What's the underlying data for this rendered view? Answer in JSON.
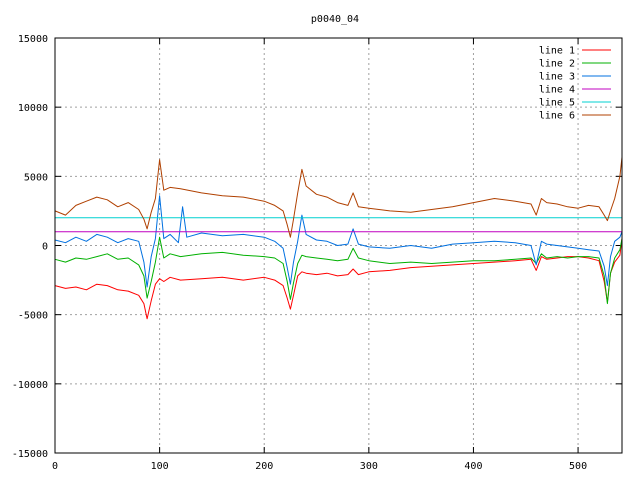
{
  "chart_data": {
    "type": "line",
    "title": "p0040_04",
    "xlabel": "",
    "ylabel": "",
    "xlim": [
      0,
      542
    ],
    "ylim": [
      -15000,
      15000
    ],
    "xticks": [
      0,
      100,
      200,
      300,
      400,
      500
    ],
    "yticks": [
      -15000,
      -10000,
      -5000,
      0,
      5000,
      10000,
      15000
    ],
    "grid": true,
    "legend_position": "top-right",
    "series": [
      {
        "name": "line 1",
        "color": "#ff0000",
        "points": [
          [
            0,
            -2900
          ],
          [
            10,
            -3100
          ],
          [
            20,
            -3000
          ],
          [
            30,
            -3200
          ],
          [
            40,
            -2800
          ],
          [
            50,
            -2900
          ],
          [
            60,
            -3200
          ],
          [
            70,
            -3300
          ],
          [
            80,
            -3600
          ],
          [
            85,
            -4200
          ],
          [
            88,
            -5300
          ],
          [
            92,
            -4000
          ],
          [
            96,
            -2800
          ],
          [
            100,
            -2400
          ],
          [
            104,
            -2600
          ],
          [
            110,
            -2300
          ],
          [
            120,
            -2500
          ],
          [
            140,
            -2400
          ],
          [
            160,
            -2300
          ],
          [
            180,
            -2500
          ],
          [
            200,
            -2300
          ],
          [
            210,
            -2500
          ],
          [
            218,
            -2900
          ],
          [
            222,
            -3800
          ],
          [
            225,
            -4600
          ],
          [
            228,
            -3600
          ],
          [
            232,
            -2200
          ],
          [
            236,
            -1900
          ],
          [
            240,
            -2000
          ],
          [
            250,
            -2100
          ],
          [
            260,
            -2000
          ],
          [
            270,
            -2200
          ],
          [
            280,
            -2100
          ],
          [
            285,
            -1700
          ],
          [
            290,
            -2100
          ],
          [
            300,
            -1900
          ],
          [
            320,
            -1800
          ],
          [
            340,
            -1600
          ],
          [
            360,
            -1500
          ],
          [
            380,
            -1400
          ],
          [
            400,
            -1300
          ],
          [
            420,
            -1200
          ],
          [
            440,
            -1100
          ],
          [
            455,
            -1000
          ],
          [
            460,
            -1800
          ],
          [
            465,
            -800
          ],
          [
            470,
            -1000
          ],
          [
            480,
            -900
          ],
          [
            490,
            -800
          ],
          [
            500,
            -800
          ],
          [
            510,
            -900
          ],
          [
            520,
            -1100
          ],
          [
            525,
            -2600
          ],
          [
            528,
            -4100
          ],
          [
            531,
            -2000
          ],
          [
            535,
            -1200
          ],
          [
            540,
            -700
          ],
          [
            542,
            500
          ]
        ]
      },
      {
        "name": "line 2",
        "color": "#00b000",
        "points": [
          [
            0,
            -1000
          ],
          [
            10,
            -1200
          ],
          [
            20,
            -900
          ],
          [
            30,
            -1000
          ],
          [
            40,
            -800
          ],
          [
            50,
            -600
          ],
          [
            60,
            -1000
          ],
          [
            70,
            -900
          ],
          [
            80,
            -1400
          ],
          [
            85,
            -2200
          ],
          [
            88,
            -3800
          ],
          [
            92,
            -2600
          ],
          [
            96,
            -1200
          ],
          [
            100,
            600
          ],
          [
            104,
            -900
          ],
          [
            110,
            -600
          ],
          [
            120,
            -800
          ],
          [
            140,
            -600
          ],
          [
            160,
            -500
          ],
          [
            180,
            -700
          ],
          [
            200,
            -800
          ],
          [
            210,
            -900
          ],
          [
            218,
            -1300
          ],
          [
            222,
            -2600
          ],
          [
            225,
            -3900
          ],
          [
            228,
            -2700
          ],
          [
            232,
            -1300
          ],
          [
            236,
            -700
          ],
          [
            240,
            -800
          ],
          [
            250,
            -900
          ],
          [
            260,
            -1000
          ],
          [
            270,
            -1100
          ],
          [
            280,
            -1000
          ],
          [
            285,
            -200
          ],
          [
            290,
            -900
          ],
          [
            300,
            -1100
          ],
          [
            320,
            -1300
          ],
          [
            340,
            -1200
          ],
          [
            360,
            -1300
          ],
          [
            380,
            -1200
          ],
          [
            400,
            -1100
          ],
          [
            420,
            -1100
          ],
          [
            440,
            -1000
          ],
          [
            455,
            -900
          ],
          [
            460,
            -1300
          ],
          [
            465,
            -600
          ],
          [
            470,
            -900
          ],
          [
            480,
            -800
          ],
          [
            490,
            -900
          ],
          [
            500,
            -800
          ],
          [
            510,
            -800
          ],
          [
            520,
            -900
          ],
          [
            525,
            -2200
          ],
          [
            528,
            -4200
          ],
          [
            531,
            -2000
          ],
          [
            535,
            -900
          ],
          [
            540,
            -300
          ],
          [
            542,
            500
          ]
        ]
      },
      {
        "name": "line 3",
        "color": "#0070e0",
        "points": [
          [
            0,
            400
          ],
          [
            10,
            200
          ],
          [
            20,
            600
          ],
          [
            30,
            300
          ],
          [
            40,
            800
          ],
          [
            50,
            600
          ],
          [
            60,
            200
          ],
          [
            70,
            500
          ],
          [
            80,
            300
          ],
          [
            85,
            -1200
          ],
          [
            88,
            -3000
          ],
          [
            92,
            -800
          ],
          [
            96,
            500
          ],
          [
            100,
            3600
          ],
          [
            104,
            500
          ],
          [
            110,
            800
          ],
          [
            118,
            200
          ],
          [
            122,
            2800
          ],
          [
            126,
            600
          ],
          [
            140,
            900
          ],
          [
            160,
            700
          ],
          [
            180,
            800
          ],
          [
            200,
            600
          ],
          [
            210,
            300
          ],
          [
            218,
            -200
          ],
          [
            222,
            -1600
          ],
          [
            225,
            -2800
          ],
          [
            228,
            -1200
          ],
          [
            232,
            300
          ],
          [
            236,
            2200
          ],
          [
            240,
            800
          ],
          [
            250,
            400
          ],
          [
            260,
            300
          ],
          [
            270,
            0
          ],
          [
            280,
            100
          ],
          [
            285,
            1200
          ],
          [
            290,
            100
          ],
          [
            300,
            -100
          ],
          [
            320,
            -200
          ],
          [
            340,
            0
          ],
          [
            360,
            -200
          ],
          [
            380,
            100
          ],
          [
            400,
            200
          ],
          [
            420,
            300
          ],
          [
            440,
            200
          ],
          [
            455,
            0
          ],
          [
            460,
            -1400
          ],
          [
            465,
            300
          ],
          [
            470,
            100
          ],
          [
            480,
            0
          ],
          [
            490,
            -100
          ],
          [
            500,
            -200
          ],
          [
            510,
            -300
          ],
          [
            520,
            -400
          ],
          [
            525,
            -1500
          ],
          [
            528,
            -2900
          ],
          [
            531,
            -800
          ],
          [
            535,
            300
          ],
          [
            540,
            600
          ],
          [
            542,
            1000
          ]
        ]
      },
      {
        "name": "line 4",
        "color": "#c000c0",
        "points": [
          [
            0,
            1000
          ],
          [
            50,
            1000
          ],
          [
            100,
            1000
          ],
          [
            150,
            1000
          ],
          [
            200,
            1000
          ],
          [
            250,
            1000
          ],
          [
            300,
            1000
          ],
          [
            350,
            1000
          ],
          [
            400,
            1000
          ],
          [
            450,
            1000
          ],
          [
            500,
            1000
          ],
          [
            542,
            1000
          ]
        ]
      },
      {
        "name": "line 5",
        "color": "#00d0d0",
        "points": [
          [
            0,
            2000
          ],
          [
            50,
            2000
          ],
          [
            100,
            2000
          ],
          [
            150,
            2000
          ],
          [
            200,
            2000
          ],
          [
            250,
            2000
          ],
          [
            300,
            2000
          ],
          [
            350,
            2000
          ],
          [
            400,
            2000
          ],
          [
            450,
            2000
          ],
          [
            500,
            2000
          ],
          [
            542,
            2000
          ]
        ]
      },
      {
        "name": "line 6",
        "color": "#b04000",
        "points": [
          [
            0,
            2500
          ],
          [
            10,
            2200
          ],
          [
            20,
            2900
          ],
          [
            30,
            3200
          ],
          [
            40,
            3500
          ],
          [
            50,
            3300
          ],
          [
            60,
            2800
          ],
          [
            70,
            3100
          ],
          [
            80,
            2600
          ],
          [
            85,
            1900
          ],
          [
            88,
            1200
          ],
          [
            92,
            2400
          ],
          [
            96,
            3400
          ],
          [
            100,
            6200
          ],
          [
            104,
            4000
          ],
          [
            110,
            4200
          ],
          [
            120,
            4100
          ],
          [
            140,
            3800
          ],
          [
            160,
            3600
          ],
          [
            180,
            3500
          ],
          [
            200,
            3200
          ],
          [
            210,
            2900
          ],
          [
            218,
            2500
          ],
          [
            222,
            1500
          ],
          [
            225,
            600
          ],
          [
            228,
            1900
          ],
          [
            232,
            3800
          ],
          [
            236,
            5500
          ],
          [
            240,
            4300
          ],
          [
            250,
            3700
          ],
          [
            260,
            3500
          ],
          [
            270,
            3100
          ],
          [
            280,
            2900
          ],
          [
            285,
            3800
          ],
          [
            290,
            2800
          ],
          [
            300,
            2700
          ],
          [
            320,
            2500
          ],
          [
            340,
            2400
          ],
          [
            360,
            2600
          ],
          [
            380,
            2800
          ],
          [
            400,
            3100
          ],
          [
            420,
            3400
          ],
          [
            440,
            3200
          ],
          [
            455,
            3000
          ],
          [
            460,
            2200
          ],
          [
            465,
            3400
          ],
          [
            470,
            3100
          ],
          [
            480,
            3000
          ],
          [
            490,
            2800
          ],
          [
            500,
            2700
          ],
          [
            510,
            2900
          ],
          [
            520,
            2800
          ],
          [
            525,
            2200
          ],
          [
            528,
            1800
          ],
          [
            531,
            2500
          ],
          [
            535,
            3400
          ],
          [
            540,
            5000
          ],
          [
            542,
            6400
          ]
        ]
      }
    ]
  }
}
